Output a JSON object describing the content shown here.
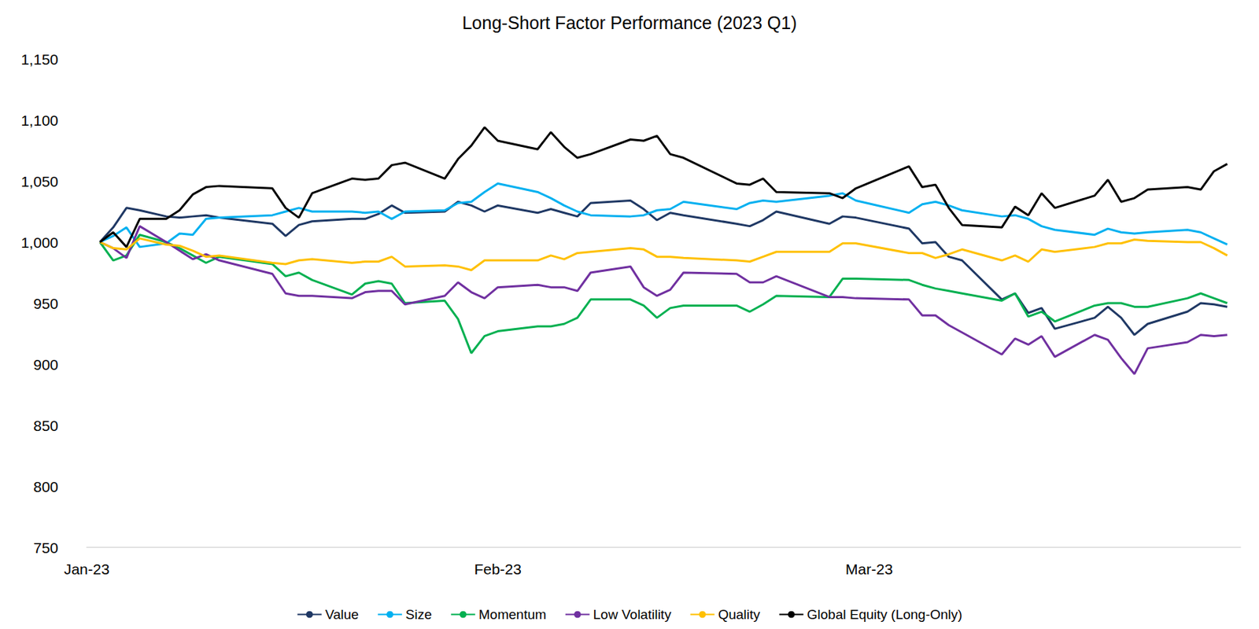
{
  "chart_data": {
    "type": "line",
    "title": "Long-Short Factor Performance (2023 Q1)",
    "x": [
      1,
      2,
      3,
      4,
      6,
      7,
      8,
      9,
      10,
      14,
      15,
      16,
      17,
      20,
      21,
      22,
      23,
      24,
      27,
      28,
      29,
      30,
      31,
      34,
      35,
      36,
      37,
      38,
      41,
      42,
      43,
      44,
      45,
      49,
      50,
      51,
      52,
      56,
      57,
      58,
      62,
      63,
      64,
      65,
      66,
      69,
      70,
      71,
      72,
      73,
      76,
      77,
      78,
      79,
      80,
      83,
      84,
      85,
      86
    ],
    "xlim": [
      0,
      87
    ],
    "xticks": [
      {
        "value": 0,
        "label": "Jan-23"
      },
      {
        "value": 31,
        "label": "Feb-23"
      },
      {
        "value": 59,
        "label": "Mar-23"
      }
    ],
    "ylim": [
      750,
      1150
    ],
    "yticks": [
      750,
      800,
      850,
      900,
      950,
      {
        "value": 1000,
        "label": "1,000"
      },
      {
        "value": 1050,
        "label": "1,050"
      },
      {
        "value": 1100,
        "label": "1,100"
      },
      {
        "value": 1150,
        "label": "1,150"
      }
    ],
    "grid": false,
    "legend": "bottom",
    "series": [
      {
        "name": "Value",
        "color": "#1F3864",
        "values": [
          1000,
          1012,
          1028,
          1026,
          1021,
          1020,
          1021,
          1022,
          1020,
          1015,
          1005,
          1014,
          1017,
          1019,
          1019,
          1023,
          1030,
          1024,
          1025,
          1033,
          1030,
          1025,
          1030,
          1024,
          1027,
          1024,
          1021,
          1032,
          1034,
          1027,
          1018,
          1024,
          1022,
          1015,
          1013,
          1018,
          1025,
          1015,
          1021,
          1020,
          1011,
          999,
          1000,
          988,
          985,
          953,
          958,
          942,
          946,
          929,
          938,
          947,
          938,
          924,
          933,
          943,
          950,
          949,
          947
        ]
      },
      {
        "name": "Size",
        "color": "#00B0F0",
        "values": [
          1000,
          1005,
          1012,
          996,
          999,
          1007,
          1006,
          1019,
          1020,
          1022,
          1025,
          1028,
          1025,
          1025,
          1024,
          1025,
          1019,
          1025,
          1026,
          1032,
          1033,
          1041,
          1048,
          1041,
          1036,
          1030,
          1025,
          1022,
          1021,
          1022,
          1026,
          1027,
          1033,
          1027,
          1032,
          1034,
          1033,
          1038,
          1040,
          1034,
          1024,
          1031,
          1033,
          1030,
          1026,
          1021,
          1022,
          1019,
          1013,
          1010,
          1006,
          1011,
          1008,
          1007,
          1008,
          1010,
          1008,
          1003,
          998
        ]
      },
      {
        "name": "Momentum",
        "color": "#00B050",
        "values": [
          1000,
          985,
          989,
          1006,
          1000,
          995,
          989,
          983,
          988,
          982,
          972,
          975,
          969,
          957,
          966,
          968,
          966,
          950,
          952,
          937,
          909,
          923,
          927,
          931,
          931,
          933,
          938,
          953,
          953,
          948,
          938,
          946,
          948,
          948,
          943,
          949,
          956,
          955,
          970,
          970,
          969,
          965,
          962,
          960,
          958,
          952,
          958,
          939,
          943,
          935,
          948,
          950,
          950,
          947,
          947,
          954,
          958,
          954,
          950
        ]
      },
      {
        "name": "Low Volatility",
        "color": "#7030A0",
        "values": [
          1000,
          995,
          987,
          1013,
          1000,
          993,
          986,
          990,
          985,
          974,
          958,
          956,
          956,
          954,
          959,
          960,
          960,
          949,
          956,
          967,
          959,
          954,
          963,
          965,
          963,
          963,
          960,
          975,
          980,
          963,
          956,
          961,
          975,
          974,
          967,
          967,
          972,
          955,
          955,
          954,
          953,
          940,
          940,
          932,
          926,
          908,
          921,
          916,
          923,
          906,
          924,
          920,
          905,
          892,
          913,
          918,
          924,
          923,
          924
        ]
      },
      {
        "name": "Quality",
        "color": "#FFC000",
        "values": [
          1000,
          995,
          994,
          1003,
          998,
          997,
          993,
          988,
          989,
          983,
          982,
          985,
          986,
          983,
          984,
          984,
          988,
          980,
          981,
          980,
          977,
          985,
          985,
          985,
          989,
          986,
          991,
          992,
          995,
          994,
          988,
          988,
          987,
          985,
          984,
          988,
          992,
          992,
          999,
          999,
          991,
          991,
          987,
          990,
          994,
          985,
          989,
          984,
          994,
          992,
          996,
          999,
          999,
          1002,
          1001,
          1000,
          1000,
          995,
          989
        ]
      },
      {
        "name": "Global Equity (Long-Only)",
        "color": "#000000",
        "values": [
          1000,
          1008,
          996,
          1019,
          1019,
          1026,
          1039,
          1045,
          1046,
          1044,
          1028,
          1020,
          1040,
          1052,
          1051,
          1052,
          1063,
          1065,
          1052,
          1068,
          1079,
          1094,
          1083,
          1076,
          1090,
          1078,
          1069,
          1072,
          1084,
          1083,
          1087,
          1072,
          1069,
          1048,
          1047,
          1052,
          1041,
          1040,
          1036,
          1044,
          1062,
          1045,
          1047,
          1028,
          1014,
          1012,
          1029,
          1022,
          1040,
          1028,
          1038,
          1051,
          1033,
          1036,
          1043,
          1045,
          1043,
          1058,
          1064
        ]
      }
    ]
  }
}
